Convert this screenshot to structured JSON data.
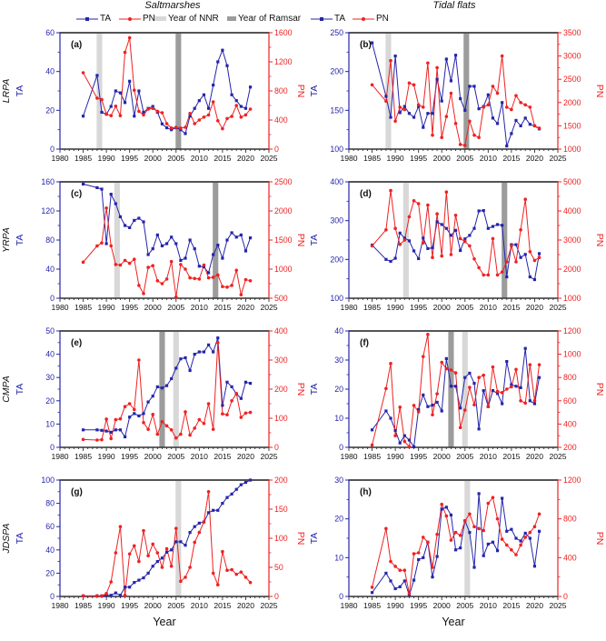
{
  "header": {
    "left_title": "Saltmarshes",
    "right_title": "Tidal flats",
    "legend": {
      "ta": "TA",
      "pn": "PN",
      "nnr": "Year of NNR",
      "ramsar": "Year of Ramsar"
    }
  },
  "colors": {
    "ta": "#2525aa",
    "pn": "#ee2222",
    "nnr_band": "#d8d8d8",
    "ramsar_band": "#9c9c9c",
    "axis": "#333333",
    "frame_top": "#555555",
    "text": "#111111"
  },
  "chart_data": {
    "type": "line",
    "legend_position": "top",
    "grid": false,
    "x_axis": {
      "label": "Year",
      "min": 1980,
      "max": 2025,
      "tick_step": 5
    },
    "x_years": [
      1985,
      1988,
      1989,
      1990,
      1991,
      1992,
      1993,
      1994,
      1995,
      1996,
      1997,
      1998,
      1999,
      2000,
      2001,
      2002,
      2003,
      2004,
      2005,
      2006,
      2007,
      2008,
      2009,
      2010,
      2011,
      2012,
      2013,
      2014,
      2015,
      2016,
      2017,
      2018,
      2019,
      2020,
      2021
    ],
    "panels": [
      {
        "id": "a",
        "letter": "(a)",
        "column": "Saltmarshes",
        "row_label": "LRPA",
        "side": "left",
        "x_title": false,
        "left_axis": {
          "label": "TA",
          "min": 0,
          "max": 60,
          "ticks": [
            0,
            20,
            40,
            60
          ]
        },
        "right_axis": {
          "label": "PN",
          "min": 0,
          "max": 1600,
          "ticks": [
            0,
            400,
            800,
            1200,
            1600
          ]
        },
        "bands": [
          {
            "type": "nnr",
            "year": 1988.5
          },
          {
            "type": "ramsar",
            "year": 2005.5
          }
        ],
        "series": {
          "ta": [
            17,
            38,
            19,
            18,
            22,
            30,
            29,
            24,
            35,
            17,
            30,
            19,
            21,
            22,
            19,
            13,
            11,
            10,
            11,
            10,
            8,
            17,
            21,
            25,
            28,
            21,
            33,
            45,
            51,
            43,
            28,
            25,
            22,
            21,
            32
          ],
          "pn": [
            1050,
            700,
            680,
            480,
            460,
            590,
            460,
            1330,
            1530,
            810,
            520,
            470,
            550,
            560,
            520,
            500,
            350,
            290,
            300,
            290,
            300,
            490,
            350,
            400,
            440,
            470,
            650,
            390,
            280,
            420,
            450,
            600,
            440,
            470,
            550
          ]
        }
      },
      {
        "id": "b",
        "letter": "(b)",
        "column": "Tidal flats",
        "row_label": null,
        "side": "right",
        "x_title": false,
        "left_axis": {
          "label": "TA",
          "min": 100,
          "max": 250,
          "ticks": [
            100,
            150,
            200,
            250
          ]
        },
        "right_axis": {
          "label": "PN",
          "min": 1000,
          "max": 3500,
          "ticks": [
            1000,
            1500,
            2000,
            2500,
            3000,
            3500
          ]
        },
        "bands": [
          {
            "type": "nnr",
            "year": 1988.5
          },
          {
            "type": "ramsar",
            "year": 2005.3
          }
        ],
        "series": {
          "ta": [
            237,
            168,
            141,
            220,
            147,
            155,
            146,
            141,
            155,
            128,
            146,
            146,
            190,
            162,
            216,
            188,
            221,
            165,
            150,
            181,
            181,
            152,
            155,
            170,
            140,
            133,
            160,
            104,
            120,
            137,
            130,
            140,
            132,
            130,
            126
          ],
          "pn": [
            2380,
            2030,
            2900,
            1600,
            1900,
            1850,
            2420,
            2380,
            1950,
            1900,
            2850,
            1300,
            2750,
            1250,
            1700,
            2200,
            1550,
            1100,
            1080,
            1600,
            1300,
            1250,
            1900,
            1950,
            2350,
            2200,
            3000,
            1900,
            1850,
            2150,
            2000,
            1950,
            1900,
            1500,
            1450
          ]
        }
      },
      {
        "id": "c",
        "letter": "(c)",
        "column": "Saltmarshes",
        "row_label": "YRPA",
        "side": "left",
        "x_title": false,
        "left_axis": {
          "label": "TA",
          "min": 0,
          "max": 160,
          "ticks": [
            0,
            40,
            80,
            120,
            160
          ]
        },
        "right_axis": {
          "label": "PN",
          "min": 500,
          "max": 2500,
          "ticks": [
            500,
            1000,
            1500,
            2000,
            2500
          ]
        },
        "bands": [
          {
            "type": "nnr",
            "year": 1992.3
          },
          {
            "type": "ramsar",
            "year": 2013.5
          }
        ],
        "series": {
          "ta": [
            157,
            152,
            150,
            75,
            143,
            130,
            112,
            100,
            97,
            107,
            110,
            105,
            60,
            68,
            87,
            72,
            75,
            84,
            75,
            52,
            55,
            80,
            68,
            44,
            43,
            35,
            60,
            73,
            55,
            80,
            90,
            84,
            87,
            65,
            83
          ],
          "pn": [
            1120,
            1400,
            1450,
            2050,
            1400,
            1080,
            1070,
            1150,
            1100,
            1170,
            720,
            580,
            1030,
            1060,
            800,
            750,
            830,
            1130,
            520,
            1080,
            1000,
            850,
            840,
            830,
            1070,
            850,
            860,
            900,
            700,
            690,
            720,
            980,
            560,
            820,
            800
          ]
        }
      },
      {
        "id": "d",
        "letter": "(d)",
        "column": "Tidal flats",
        "row_label": null,
        "side": "right",
        "x_title": false,
        "left_axis": {
          "label": "TA",
          "min": 100,
          "max": 400,
          "ticks": [
            100,
            200,
            300,
            400
          ]
        },
        "right_axis": {
          "label": "PN",
          "min": 1000,
          "max": 5000,
          "ticks": [
            1000,
            2000,
            3000,
            4000,
            5000
          ]
        },
        "bands": [
          {
            "type": "nnr",
            "year": 1992.3
          },
          {
            "type": "ramsar",
            "year": 2013.5
          }
        ],
        "series": {
          "ta": [
            237,
            200,
            195,
            203,
            268,
            255,
            248,
            222,
            202,
            255,
            228,
            230,
            297,
            290,
            280,
            262,
            275,
            223,
            253,
            262,
            280,
            325,
            326,
            280,
            285,
            290,
            288,
            155,
            238,
            238,
            205,
            213,
            155,
            148,
            215
          ],
          "pn": [
            2800,
            3350,
            4700,
            3400,
            2850,
            3000,
            3800,
            4350,
            4250,
            2900,
            4200,
            2400,
            3900,
            2450,
            4650,
            2500,
            3850,
            3050,
            2950,
            2800,
            2350,
            2050,
            1800,
            1800,
            3050,
            1800,
            1900,
            2250,
            2800,
            2250,
            3350,
            4400,
            2600,
            2300,
            2400
          ]
        }
      },
      {
        "id": "e",
        "letter": "(e)",
        "column": "Saltmarshes",
        "row_label": "CMPA",
        "side": "left",
        "x_title": false,
        "left_axis": {
          "label": "TA",
          "min": 0,
          "max": 50,
          "ticks": [
            0,
            10,
            20,
            30,
            40,
            50
          ]
        },
        "right_axis": {
          "label": "PN",
          "min": 0,
          "max": 400,
          "ticks": [
            0,
            100,
            200,
            300,
            400
          ]
        },
        "bands": [
          {
            "type": "ramsar",
            "year": 2002
          },
          {
            "type": "nnr",
            "year": 2005
          }
        ],
        "series": {
          "ta": [
            7.5,
            7.5,
            7.3,
            7,
            6.5,
            7.5,
            7.5,
            4.5,
            13,
            14.5,
            13.5,
            14.5,
            19.5,
            22,
            26,
            25.5,
            26.5,
            29.5,
            34,
            38,
            38.5,
            33,
            40,
            41,
            41,
            44,
            41,
            47,
            18,
            28,
            26,
            23,
            21,
            28,
            27.5
          ],
          "pn": [
            27,
            25,
            26,
            97,
            30,
            95,
            98,
            140,
            150,
            130,
            300,
            85,
            62,
            113,
            45,
            88,
            74,
            60,
            32,
            45,
            122,
            42,
            66,
            95,
            82,
            150,
            62,
            360,
            115,
            112,
            160,
            185,
            103,
            118,
            120
          ]
        }
      },
      {
        "id": "f",
        "letter": "(f)",
        "column": "Tidal flats",
        "row_label": null,
        "side": "right",
        "x_title": false,
        "left_axis": {
          "label": "TA",
          "min": 0,
          "max": 40,
          "ticks": [
            0,
            10,
            20,
            30,
            40
          ]
        },
        "right_axis": {
          "label": "PN",
          "min": 200,
          "max": 1200,
          "ticks": [
            200,
            400,
            600,
            800,
            1000,
            1200
          ]
        },
        "bands": [
          {
            "type": "ramsar",
            "year": 2002
          },
          {
            "type": "nnr",
            "year": 2005
          }
        ],
        "series": {
          "ta": [
            6,
            12.5,
            10,
            5.8,
            1.5,
            4,
            2.5,
            0.2,
            13,
            18,
            14,
            14.5,
            15.5,
            12.5,
            30.5,
            21,
            21,
            13.5,
            24,
            25.5,
            22,
            6.3,
            19.5,
            14,
            19.5,
            18.5,
            15,
            29.5,
            21.5,
            21,
            20.5,
            34,
            16,
            15,
            24
          ],
          "pn": [
            220,
            705,
            920,
            300,
            545,
            250,
            205,
            560,
            505,
            980,
            1170,
            480,
            660,
            930,
            875,
            865,
            840,
            370,
            520,
            715,
            565,
            800,
            820,
            550,
            890,
            680,
            670,
            700,
            720,
            870,
            600,
            580,
            910,
            600,
            910
          ]
        }
      },
      {
        "id": "g",
        "letter": "(g)",
        "column": "Saltmarshes",
        "row_label": "JDSPA",
        "side": "left",
        "x_title": true,
        "left_axis": {
          "label": "TA",
          "min": 0,
          "max": 100,
          "ticks": [
            0,
            20,
            40,
            60,
            80,
            100
          ]
        },
        "right_axis": {
          "label": "PN",
          "min": 0,
          "max": 200,
          "ticks": [
            0,
            50,
            100,
            150,
            200
          ]
        },
        "bands": [
          {
            "type": "nnr",
            "year": 2005.5
          }
        ],
        "series": {
          "ta": [
            0.5,
            0.5,
            0.5,
            1,
            1,
            3,
            1,
            8,
            8,
            12,
            14,
            16,
            20,
            26,
            30,
            33,
            38,
            40,
            47,
            47,
            44,
            55,
            60,
            63,
            64,
            72,
            74,
            74,
            80,
            85,
            88,
            92,
            96,
            98,
            100
          ],
          "pn": [
            1,
            1,
            1,
            5,
            25,
            75,
            120,
            2,
            73,
            87,
            60,
            113,
            70,
            90,
            75,
            50,
            82,
            52,
            117,
            26,
            33,
            50,
            93,
            110,
            128,
            180,
            40,
            20,
            77,
            45,
            46,
            38,
            42,
            33,
            24
          ]
        }
      },
      {
        "id": "h",
        "letter": "(h)",
        "column": "Tidal flats",
        "row_label": null,
        "side": "right",
        "x_title": true,
        "left_axis": {
          "label": "TA",
          "min": 0,
          "max": 30,
          "ticks": [
            0,
            10,
            20,
            30
          ]
        },
        "right_axis": {
          "label": "PN",
          "min": 0,
          "max": 1200,
          "ticks": [
            0,
            400,
            800,
            1200
          ]
        },
        "bands": [
          {
            "type": "nnr",
            "year": 2005.5
          }
        ],
        "series": {
          "ta": [
            1,
            6,
            4,
            2,
            2.5,
            4,
            0.3,
            4.2,
            9.5,
            10,
            14,
            5,
            10.3,
            22.5,
            23,
            21,
            12,
            12.5,
            19.5,
            16.5,
            7.5,
            26.5,
            10.5,
            13.5,
            14,
            11.8,
            25.3,
            16.8,
            17.3,
            15,
            14.3,
            16.3,
            15,
            7.8,
            16.8
          ],
          "pn": [
            95,
            700,
            360,
            310,
            270,
            270,
            30,
            440,
            450,
            610,
            560,
            300,
            640,
            950,
            830,
            580,
            660,
            630,
            780,
            850,
            720,
            700,
            680,
            960,
            1020,
            800,
            590,
            530,
            480,
            430,
            530,
            610,
            660,
            720,
            850
          ]
        }
      }
    ]
  }
}
